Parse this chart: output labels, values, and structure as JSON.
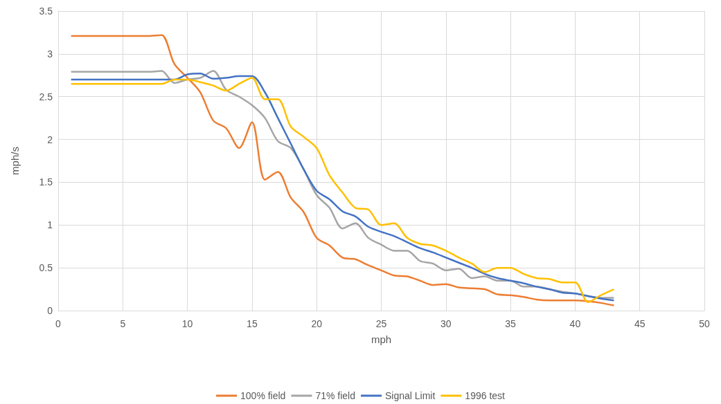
{
  "chart_data": {
    "type": "line",
    "xlabel": "mph",
    "ylabel": "mph/s",
    "x": [
      1,
      2,
      3,
      4,
      5,
      6,
      7,
      8,
      9,
      10,
      11,
      12,
      13,
      14,
      15,
      16,
      17,
      18,
      19,
      20,
      21,
      22,
      23,
      24,
      25,
      26,
      27,
      28,
      29,
      30,
      31,
      32,
      33,
      34,
      35,
      36,
      37,
      38,
      39,
      40,
      41,
      42,
      43
    ],
    "series": [
      {
        "name": "100% field",
        "color": "#ed7d31",
        "values": [
          3.21,
          3.21,
          3.21,
          3.21,
          3.21,
          3.21,
          3.21,
          3.22,
          2.88,
          2.72,
          2.55,
          2.22,
          2.13,
          1.9,
          2.2,
          1.53,
          1.62,
          1.32,
          1.15,
          0.85,
          0.76,
          0.62,
          0.6,
          0.53,
          0.47,
          0.41,
          0.4,
          0.35,
          0.3,
          0.31,
          0.27,
          0.26,
          0.25,
          0.19,
          0.18,
          0.16,
          0.13,
          0.12,
          0.12,
          0.12,
          0.11,
          0.09,
          0.06
        ]
      },
      {
        "name": "71% field",
        "color": "#a5a5a5",
        "values": [
          2.79,
          2.79,
          2.79,
          2.79,
          2.79,
          2.79,
          2.79,
          2.8,
          2.66,
          2.7,
          2.72,
          2.8,
          2.58,
          2.5,
          2.4,
          2.25,
          1.98,
          1.9,
          1.65,
          1.35,
          1.2,
          0.96,
          1.02,
          0.85,
          0.77,
          0.7,
          0.7,
          0.58,
          0.55,
          0.47,
          0.49,
          0.38,
          0.4,
          0.35,
          0.35,
          0.28,
          0.28,
          0.25,
          0.22,
          0.2,
          0.17,
          0.15,
          0.15
        ]
      },
      {
        "name": "Signal Limit",
        "color": "#4472c4",
        "values": [
          2.7,
          2.7,
          2.7,
          2.7,
          2.7,
          2.7,
          2.7,
          2.7,
          2.7,
          2.76,
          2.77,
          2.71,
          2.72,
          2.74,
          2.74,
          2.55,
          2.25,
          1.95,
          1.65,
          1.4,
          1.3,
          1.16,
          1.1,
          0.98,
          0.92,
          0.87,
          0.8,
          0.73,
          0.68,
          0.62,
          0.56,
          0.5,
          0.43,
          0.38,
          0.35,
          0.32,
          0.28,
          0.25,
          0.21,
          0.2,
          0.17,
          0.14,
          0.12
        ]
      },
      {
        "name": "1996 test",
        "color": "#ffc000",
        "values": [
          2.65,
          2.65,
          2.65,
          2.65,
          2.65,
          2.65,
          2.65,
          2.65,
          2.7,
          2.7,
          2.67,
          2.63,
          2.57,
          2.65,
          2.72,
          2.47,
          2.47,
          2.15,
          2.03,
          1.9,
          1.58,
          1.38,
          1.2,
          1.18,
          1.0,
          1.02,
          0.85,
          0.78,
          0.76,
          0.7,
          0.62,
          0.55,
          0.45,
          0.5,
          0.5,
          0.43,
          0.38,
          0.37,
          0.33,
          0.33,
          0.1,
          0.18,
          0.25
        ]
      }
    ],
    "xlim": [
      0,
      50
    ],
    "xticks": [
      0,
      5,
      10,
      15,
      20,
      25,
      30,
      35,
      40,
      45,
      50
    ],
    "ylim": [
      0,
      3.5
    ],
    "yticks": [
      0,
      0.5,
      1,
      1.5,
      2,
      2.5,
      3,
      3.5
    ],
    "grid": true,
    "legend": "bottom",
    "marker": "none",
    "line_style": "solid"
  }
}
